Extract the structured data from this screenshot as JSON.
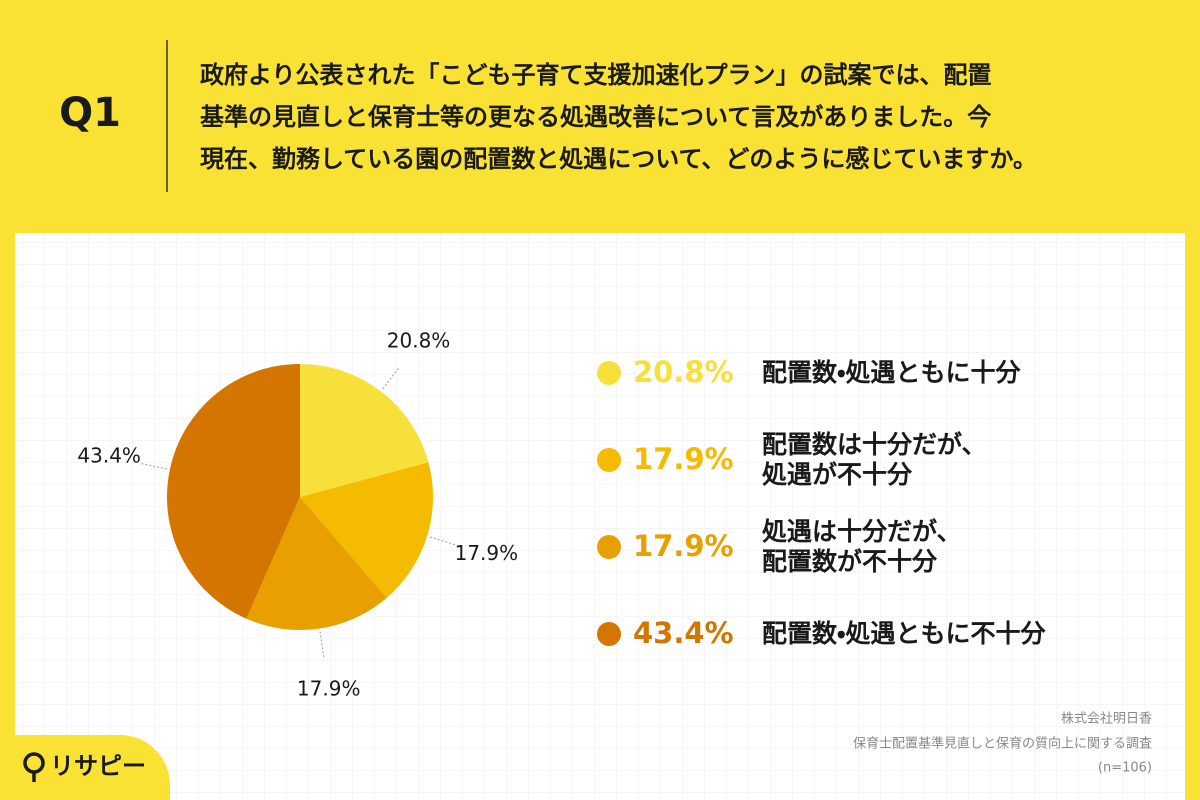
{
  "header": {
    "label": "Q1",
    "question": [
      "政府より公表された「こども子育て支援加速化プラン」の試案では、配置",
      "基準の見直しと保育士等の更なる処遇改善について言及がありました。今",
      "現在、勤務している園の配置数と処遇について、どのように感じていますか。"
    ]
  },
  "chart_data": {
    "type": "pie",
    "categories": [
      "配置数・処遇ともに十分",
      "配置数は十分だが、\n処遇が不十分",
      "処遇は十分だが、\n配置数が不十分",
      "配置数・処遇ともに不十分"
    ],
    "values": [
      20.8,
      17.9,
      17.9,
      43.4
    ],
    "value_labels": [
      "20.8%",
      "17.9%",
      "17.9%",
      "43.4%"
    ],
    "colors": [
      "#f8e03a",
      "#f5bb00",
      "#e8a000",
      "#d47500"
    ]
  },
  "footer": {
    "company": "株式会社明日香",
    "survey": "保育士配置基準見直しと保育の質向上に関する調査",
    "sample": "(n=106)"
  },
  "logo": "リサピー"
}
